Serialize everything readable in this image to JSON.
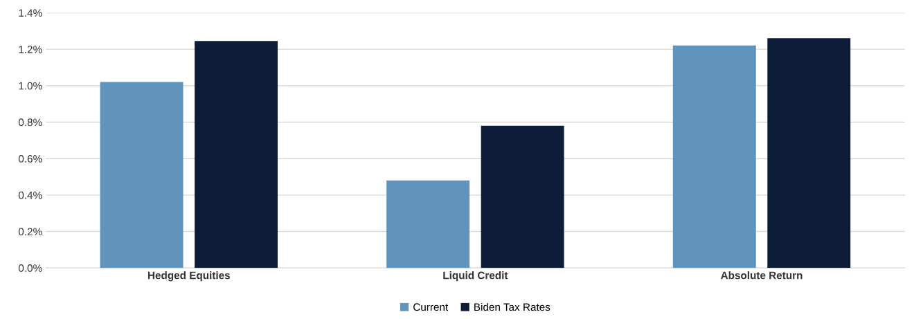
{
  "chart_data": {
    "type": "bar",
    "categories": [
      "Hedged Equities",
      "Liquid Credit",
      "Absolute Return"
    ],
    "series": [
      {
        "name": "Current",
        "color": "#6094bd",
        "values": [
          1.02,
          0.48,
          1.22
        ]
      },
      {
        "name": "Biden Tax Rates",
        "color": "#0d1c38",
        "values": [
          1.245,
          0.78,
          1.26
        ]
      }
    ],
    "ylim": [
      0,
      1.4
    ],
    "yticks": [
      {
        "value": 0,
        "label": "0.0%"
      },
      {
        "value": 0.2,
        "label": "0.2%"
      },
      {
        "value": 0.4,
        "label": "0.4%"
      },
      {
        "value": 0.6,
        "label": "0.6%"
      },
      {
        "value": 0.8,
        "label": "0.8%"
      },
      {
        "value": 1.0,
        "label": "1.0%"
      },
      {
        "value": 1.2,
        "label": "1.2%"
      },
      {
        "value": 1.4,
        "label": "1.4%"
      }
    ],
    "grid": "y",
    "legend": "bottom"
  }
}
